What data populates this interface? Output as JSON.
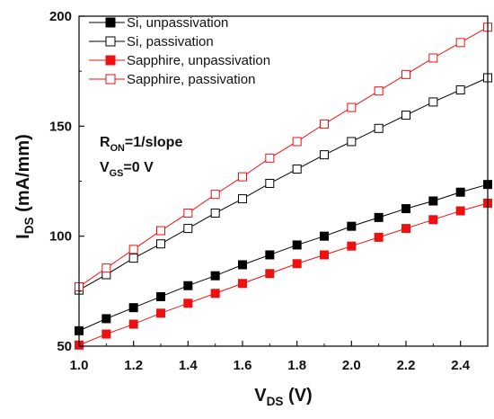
{
  "chart_data": {
    "type": "line",
    "xlabel": {
      "main": "V",
      "sub": "DS",
      "unit": " (V)"
    },
    "ylabel": {
      "main": "I",
      "sub": "DS",
      "unit": " (mA/mm)"
    },
    "xlim": [
      1.0,
      2.5
    ],
    "ylim": [
      50,
      200
    ],
    "xticks": [
      "1.0",
      "1.2",
      "1.4",
      "1.6",
      "1.8",
      "2.0",
      "2.2",
      "2.4"
    ],
    "yticks": [
      "50",
      "100",
      "150",
      "200"
    ],
    "xtick_values": [
      1.0,
      1.2,
      1.4,
      1.6,
      1.8,
      2.0,
      2.2,
      2.4
    ],
    "ytick_values": [
      50,
      100,
      150,
      200
    ],
    "grid": false,
    "legend_position": "top-left",
    "annotations": [
      {
        "main": "R",
        "sub": "ON",
        "rest": "=1/slope"
      },
      {
        "main": "V",
        "sub": "GS",
        "rest": "=0 V"
      }
    ],
    "x": [
      1.0,
      1.1,
      1.2,
      1.3,
      1.4,
      1.5,
      1.6,
      1.7,
      1.8,
      1.9,
      2.0,
      2.1,
      2.2,
      2.3,
      2.4,
      2.5
    ],
    "series": [
      {
        "name": "Si, unpassivation",
        "color": "#000000",
        "marker": "filled-square",
        "values": [
          57,
          62.5,
          67.5,
          72.5,
          77.5,
          82,
          87,
          91.5,
          96,
          100,
          104.5,
          108.5,
          112.5,
          116,
          120,
          123.5
        ]
      },
      {
        "name": "Si, passivation",
        "color": "#000000",
        "marker": "open-square",
        "values": [
          75.5,
          82.5,
          90,
          96.5,
          103.5,
          110.5,
          117,
          124,
          130.5,
          137,
          143,
          149,
          155,
          161,
          166.5,
          172
        ]
      },
      {
        "name": "Sapphire, unpassivation",
        "color": "#ee1111",
        "marker": "filled-square",
        "values": [
          50.5,
          55.5,
          60,
          65,
          69.5,
          74,
          78.5,
          83,
          87.5,
          91.5,
          95.5,
          99.5,
          103.5,
          107.5,
          111.5,
          115
        ]
      },
      {
        "name": "Sapphire, passivation",
        "color": "#ee1111",
        "marker": "open-square",
        "values": [
          77,
          85.5,
          94,
          102.5,
          110.5,
          119,
          127,
          135.5,
          143,
          151,
          158.5,
          166,
          173.5,
          181,
          188,
          195
        ]
      }
    ]
  }
}
